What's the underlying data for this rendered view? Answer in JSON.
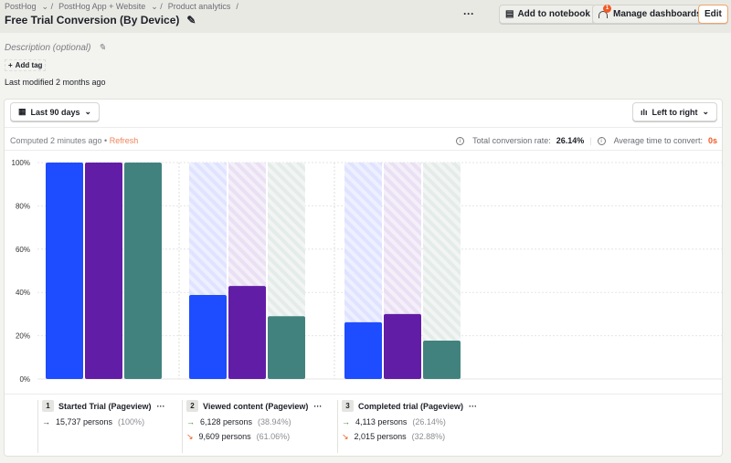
{
  "breadcrumbs": [
    "PostHog",
    "PostHog App + Website",
    "Product analytics"
  ],
  "title": "Free Trial Conversion (By Device)",
  "description_placeholder": "Description (optional)",
  "add_tag": "Add tag",
  "last_modified": "Last modified 2 months ago",
  "header": {
    "more": "···",
    "add_to_notebook": "Add to notebook",
    "manage_dashboards": "Manage dashboards",
    "manage_badge": "1",
    "edit": "Edit"
  },
  "filters": {
    "date_range": "Last 90 days",
    "layout": "Left to right"
  },
  "computed": "Computed 2 minutes ago •",
  "refresh": "Refresh",
  "stats": {
    "total_label": "Total conversion rate:",
    "total_value": "26.14%",
    "avg_label": "Average time to convert:",
    "avg_value": "0s"
  },
  "colors": {
    "blue": "#1e4cff",
    "purple": "#621da6",
    "teal": "#42827e",
    "accent": "#f05a24"
  },
  "chart_data": {
    "type": "bar",
    "categories": [
      "Started Trial (Pageview)",
      "Viewed content (Pageview)",
      "Completed trial (Pageview)"
    ],
    "yticks": [
      "0%",
      "20%",
      "40%",
      "60%",
      "80%",
      "100%"
    ],
    "ylim": [
      0,
      100
    ],
    "grid": true,
    "series": [
      {
        "values": [
          100,
          38.8,
          26.2
        ]
      },
      {
        "values": [
          100,
          43,
          30
        ]
      },
      {
        "values": [
          100,
          29,
          17.7
        ]
      }
    ]
  },
  "steps": [
    {
      "n": "1",
      "name": "Started Trial (Pageview)",
      "conv": "15,737 persons",
      "conv_pct": "(100%)"
    },
    {
      "n": "2",
      "name": "Viewed content (Pageview)",
      "conv": "6,128 persons",
      "conv_pct": "(38.94%)",
      "drop": "9,609 persons",
      "drop_pct": "(61.06%)"
    },
    {
      "n": "3",
      "name": "Completed trial (Pageview)",
      "conv": "4,113 persons",
      "conv_pct": "(26.14%)",
      "drop": "2,015 persons",
      "drop_pct": "(32.88%)"
    }
  ]
}
